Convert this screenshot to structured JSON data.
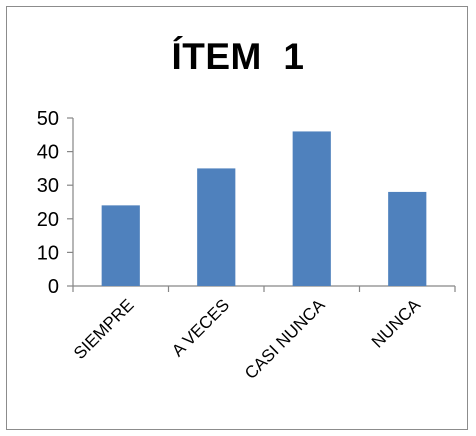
{
  "chart_data": {
    "type": "bar",
    "title": "ÍTEM  1",
    "categories": [
      "SIEMPRE",
      "A VECES",
      "CASI NUNCA",
      "NUNCA"
    ],
    "series": [
      {
        "values": [
          24,
          35,
          46,
          28
        ],
        "color": "#4f81bd"
      }
    ],
    "ylim": [
      0,
      50
    ],
    "yticks": [
      0,
      10,
      20,
      30,
      40,
      50
    ],
    "grid": false,
    "legend": "none"
  }
}
